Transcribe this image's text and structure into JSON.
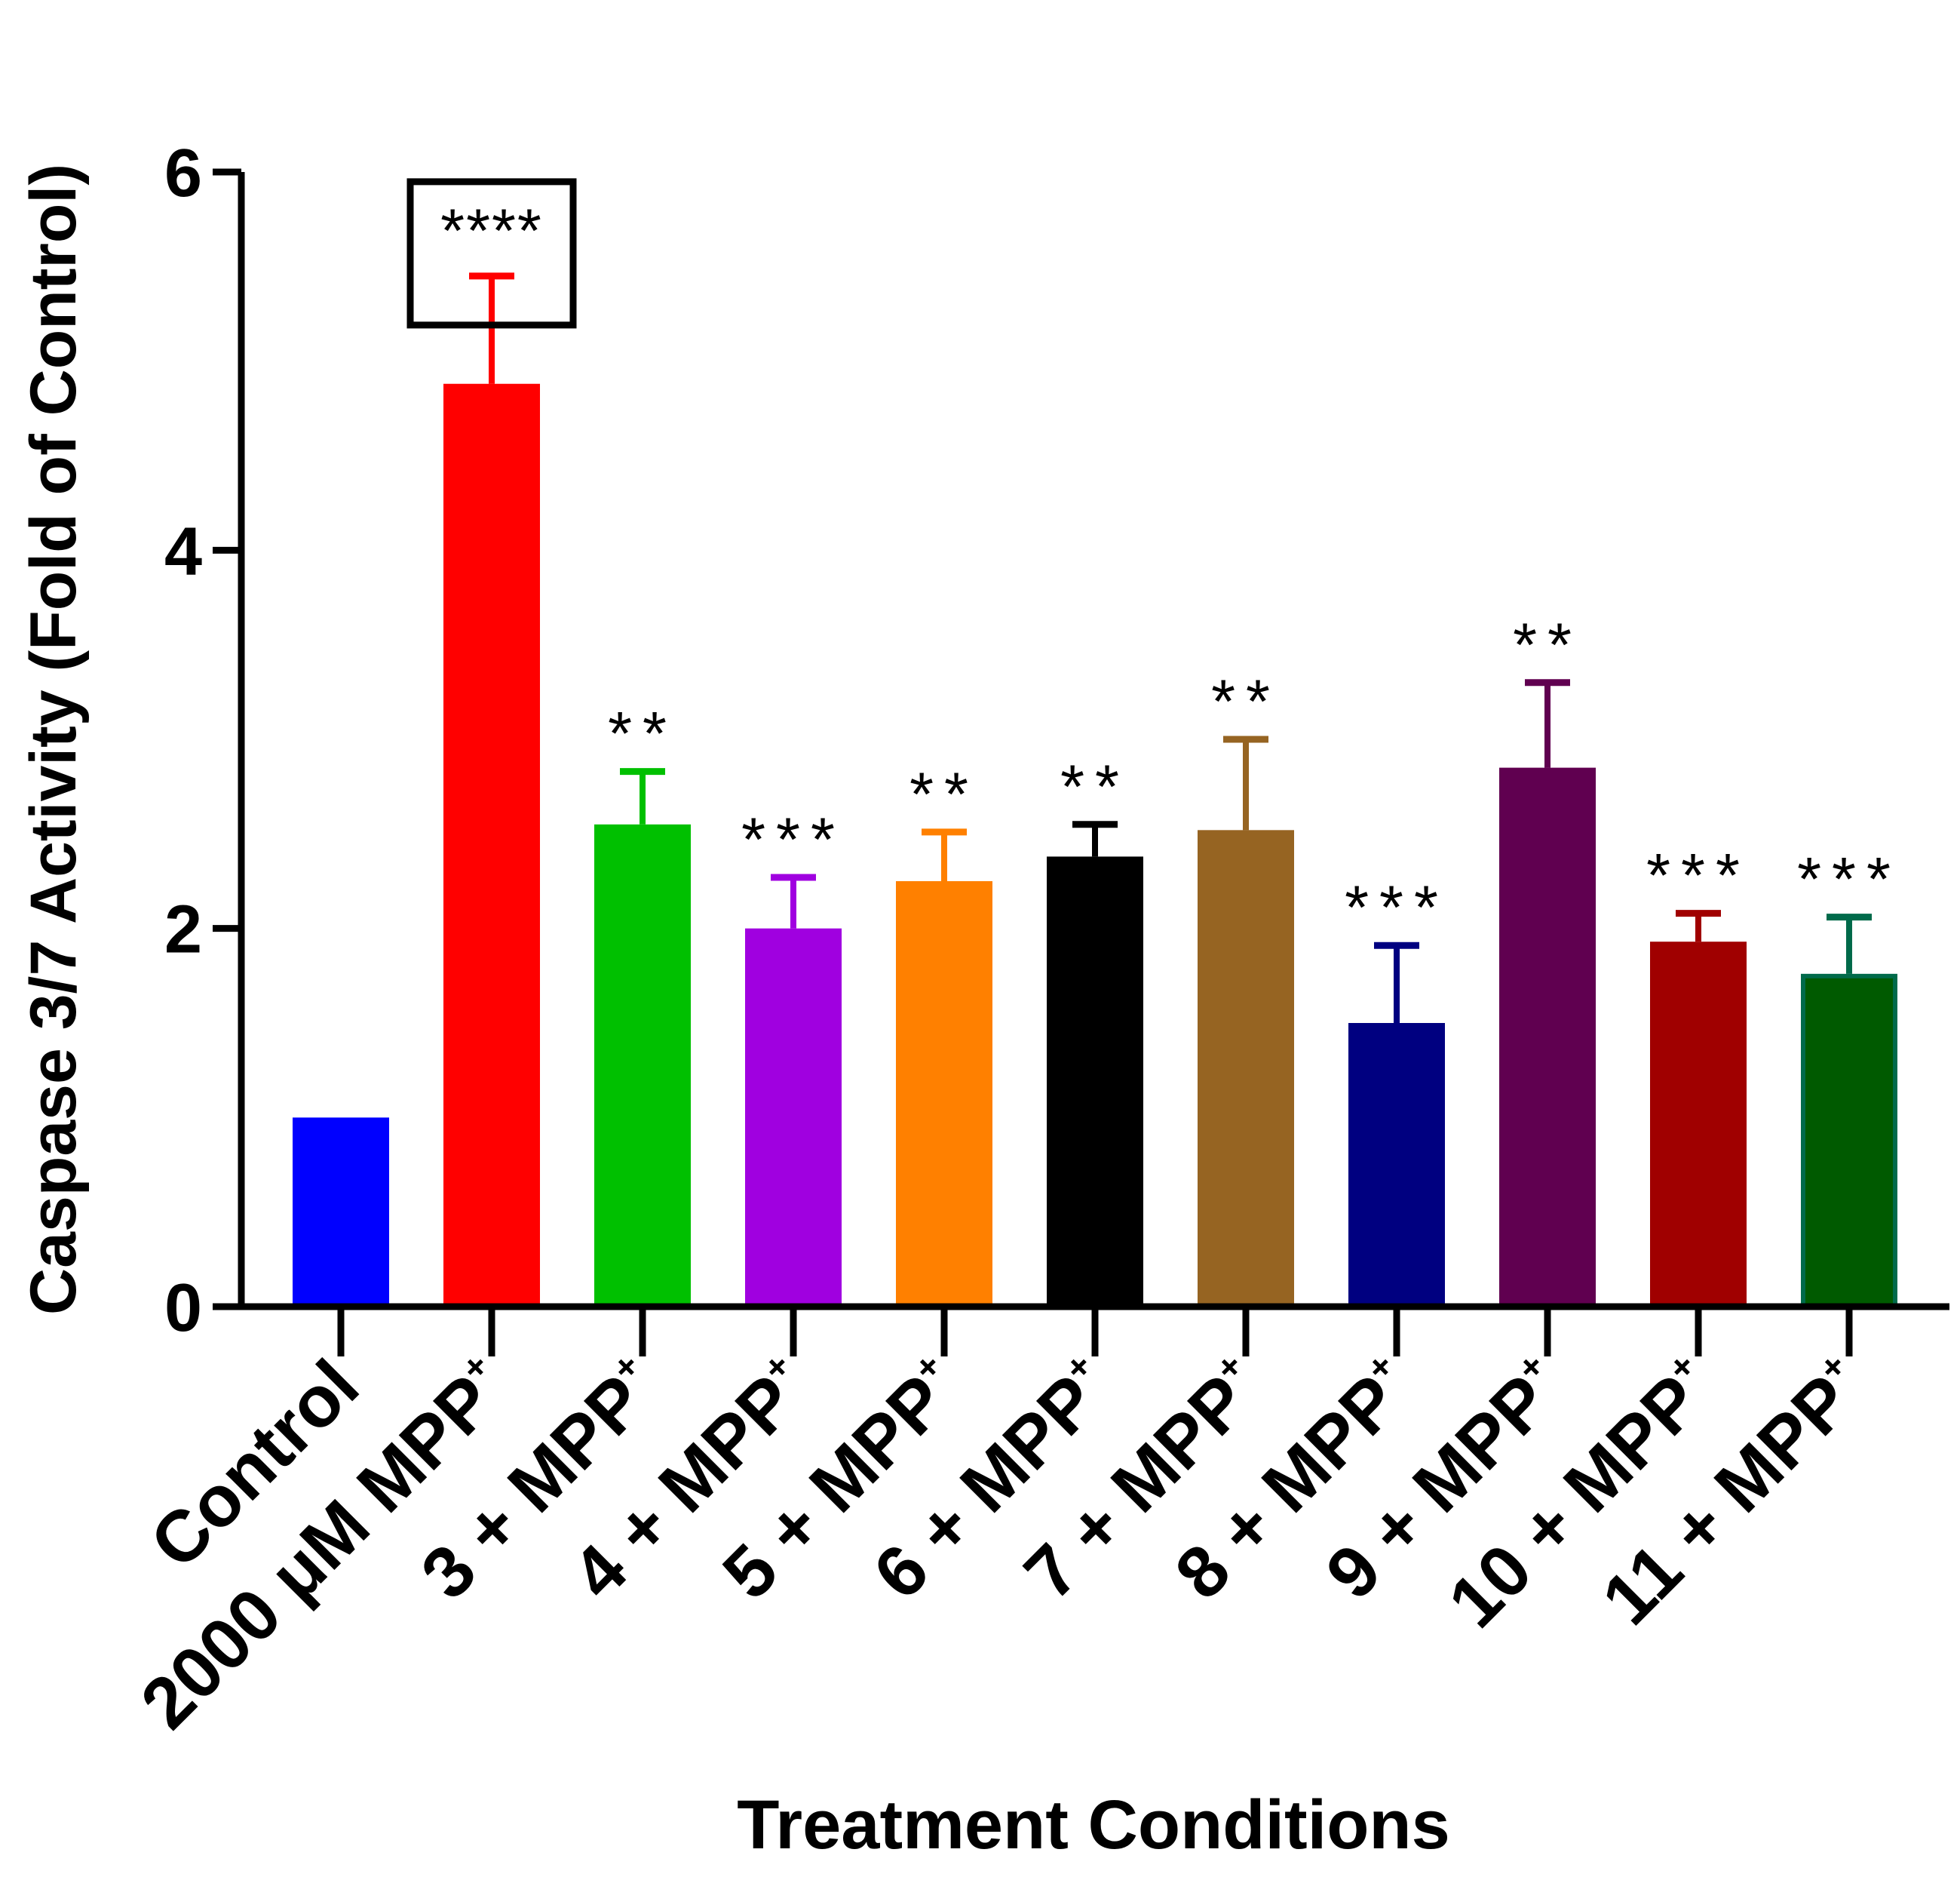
{
  "chart_data": {
    "type": "bar",
    "title": "",
    "ylabel": "Caspase 3/7 Activity (Fold of Control)",
    "xlabel": "Treatment Conditions",
    "ylim": [
      0,
      6
    ],
    "yticks": [
      "0",
      "2",
      "4",
      "6"
    ],
    "highlight_index": 1,
    "categories": [
      {
        "main": "Control",
        "sup": ""
      },
      {
        "main": "2000 μM MPP",
        "sup": "+"
      },
      {
        "main": "3 + MPP",
        "sup": "+"
      },
      {
        "main": "4 + MPP",
        "sup": "+"
      },
      {
        "main": "5 + MPP",
        "sup": "+"
      },
      {
        "main": "6 + MPP",
        "sup": "+"
      },
      {
        "main": "7 + MPP",
        "sup": "+"
      },
      {
        "main": "8 + MPP",
        "sup": "+"
      },
      {
        "main": "9 + MPP",
        "sup": "+"
      },
      {
        "main": "10 + MPP",
        "sup": "+"
      },
      {
        "main": "11 + MPP",
        "sup": "+"
      }
    ],
    "values": [
      1.0,
      4.88,
      2.55,
      2.0,
      2.25,
      2.38,
      2.52,
      1.5,
      2.85,
      1.93,
      1.76
    ],
    "errors": [
      0.0,
      0.57,
      0.28,
      0.27,
      0.26,
      0.17,
      0.48,
      0.41,
      0.45,
      0.15,
      0.3
    ],
    "significance": [
      "",
      "****",
      "**",
      "***",
      "**",
      "**",
      "**",
      "***",
      "**",
      "***",
      "***"
    ],
    "colors": [
      "#0000ff",
      "#ff0000",
      "#00c000",
      "#a000e0",
      "#ff8000",
      "#000000",
      "#966422",
      "#000080",
      "#600050",
      "#a00000",
      "#005a00"
    ],
    "outline_colors": [
      "#0000ff",
      "#ff0000",
      "#00c000",
      "#a000e0",
      "#ff8000",
      "#000000",
      "#966422",
      "#000080",
      "#600050",
      "#a00000",
      "#006a4a"
    ]
  }
}
